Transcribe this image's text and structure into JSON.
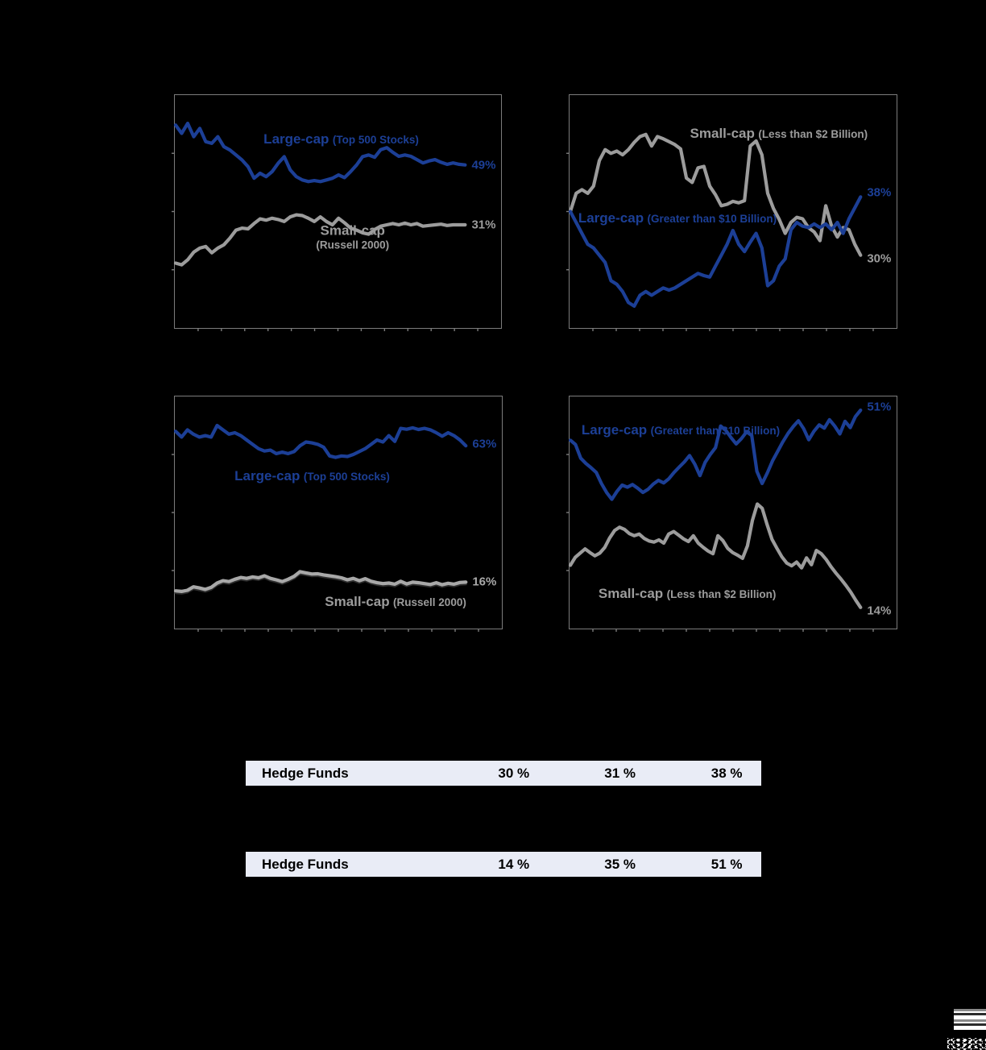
{
  "chart_data": [
    {
      "type": "line",
      "ylim": [
        0,
        70
      ],
      "legend_position": "inline-labels",
      "grid": false,
      "series": [
        {
          "name": "large-cap-top-500",
          "label": "Large-cap",
          "sublabel": "(Top 500 Stocks)",
          "color": "#1c3f96",
          "end_label": "49%",
          "end_dy": 0,
          "values": [
            61,
            58.5,
            61.5,
            57.5,
            60,
            56,
            55.5,
            57.5,
            54.5,
            53.5,
            52,
            50.5,
            48.5,
            45,
            46.5,
            45.5,
            47,
            49.5,
            51.5,
            47.5,
            45.5,
            44.5,
            44,
            44.3,
            44,
            44.5,
            45,
            46,
            45.2,
            47,
            49,
            51.5,
            52,
            51.3,
            53.6,
            54.2,
            52.8,
            51.6,
            52,
            51.6,
            50.6,
            49.6,
            50.2,
            50.6,
            49.8,
            49.2,
            49.6,
            49.2,
            49
          ]
        },
        {
          "name": "small-cap-russell-2000",
          "label": "Small-cap",
          "sublabel": "(Russell 2000)",
          "stacked_label": true,
          "color": "#9c9c9c",
          "end_label": "31%",
          "end_dy": 0,
          "values": [
            19.5,
            19,
            20.5,
            22.8,
            24,
            24.5,
            22.6,
            24,
            25,
            27,
            29.4,
            30,
            29.8,
            31.4,
            32.8,
            32.4,
            33,
            32.6,
            32,
            33.4,
            34,
            33.8,
            33,
            32,
            33.4,
            32,
            31,
            33,
            31.6,
            30,
            29.4,
            28.6,
            28.2,
            29.6,
            30.6,
            31,
            31.4,
            31,
            31.5,
            31,
            31.4,
            30.6,
            30.8,
            31,
            31.2,
            30.8,
            31,
            31,
            31
          ]
        }
      ]
    },
    {
      "type": "line",
      "ylim": [
        20,
        52
      ],
      "legend_position": "inline-labels",
      "grid": false,
      "series": [
        {
          "name": "large-cap-greater-10b",
          "label": "Large-cap",
          "sublabel": "(Greater than $10 Billion)",
          "color": "#1c3f96",
          "end_label": "38%",
          "end_dy": -5,
          "values": [
            36,
            34.5,
            33,
            31.5,
            31,
            30,
            29,
            26.5,
            26,
            25,
            23.5,
            23,
            24.5,
            25,
            24.5,
            25,
            25.5,
            25.2,
            25.5,
            26,
            26.5,
            27,
            27.5,
            27.2,
            27,
            28.5,
            30,
            31.5,
            33.4,
            31.5,
            30.5,
            31.8,
            33,
            31,
            25.8,
            26.5,
            28.5,
            29.5,
            33.5,
            34.5,
            34,
            33.8,
            34.3,
            33.8,
            34.3,
            33.5,
            34.5,
            33,
            35,
            36.5,
            38
          ]
        },
        {
          "name": "small-cap-less-2b",
          "label": "Small-cap",
          "sublabel": "(Less than $2 Billion)",
          "color": "#9c9c9c",
          "end_label": "30%",
          "end_dy": 4,
          "values": [
            36,
            38.5,
            39,
            38.5,
            39.5,
            43,
            44.5,
            44,
            44.3,
            43.8,
            44.5,
            45.5,
            46.3,
            46.6,
            45,
            46.3,
            46,
            45.6,
            45.2,
            44.6,
            40.6,
            40,
            42,
            42.2,
            39.5,
            38.3,
            36.8,
            37,
            37.4,
            37.2,
            37.5,
            45,
            45.7,
            43.8,
            38.5,
            36.4,
            34.9,
            33,
            34.5,
            35.2,
            35,
            33.8,
            33.2,
            32,
            36.8,
            34,
            32.5,
            33.8,
            33.5,
            31.5,
            30
          ]
        }
      ]
    },
    {
      "type": "line",
      "ylim": [
        0,
        80
      ],
      "legend_position": "inline-labels",
      "grid": false,
      "series": [
        {
          "name": "large-cap-top-500",
          "label": "Large-cap",
          "sublabel": "(Top 500 Stocks)",
          "color": "#1c3f96",
          "end_label": "63%",
          "end_dy": -2,
          "values": [
            68,
            66,
            68.5,
            67,
            66,
            66.5,
            66,
            70,
            68.5,
            67,
            67.5,
            66.5,
            65,
            63.5,
            62,
            61.2,
            61.5,
            60.3,
            60.8,
            60.3,
            61,
            63,
            64.3,
            64,
            63.5,
            62.5,
            59.5,
            59,
            59.5,
            59.3,
            60,
            61,
            62,
            63.5,
            65,
            64.3,
            66.5,
            64.5,
            69,
            68.7,
            69.2,
            68.6,
            69,
            68.5,
            67.5,
            66.3,
            67.5,
            66.5,
            65,
            63
          ]
        },
        {
          "name": "small-cap-russell-2000",
          "label": "Small-cap",
          "sublabel": "(Russell 2000)",
          "color": "#a8a8a8",
          "shadow": true,
          "end_label": "16%",
          "end_dy": 0,
          "values": [
            13,
            12.8,
            13.2,
            14.4,
            14,
            13.5,
            14.2,
            15.7,
            16.5,
            16.2,
            17,
            17.6,
            17.3,
            17.8,
            17.5,
            18.2,
            17.3,
            16.8,
            16.2,
            17,
            18,
            19.6,
            19.2,
            18.8,
            18.9,
            18.5,
            18.2,
            17.9,
            17.5,
            16.8,
            17.3,
            16.5,
            17.2,
            16.3,
            15.8,
            15.5,
            15.7,
            15.3,
            16.3,
            15.4,
            16,
            15.8,
            15.5,
            15.2,
            15.8,
            15.1,
            15.6,
            15.3,
            15.9,
            16
          ]
        }
      ]
    },
    {
      "type": "line",
      "ylim": [
        10,
        54
      ],
      "legend_position": "inline-labels",
      "grid": false,
      "series": [
        {
          "name": "large-cap-greater-10b",
          "label": "Large-cap",
          "sublabel": "(Greater than $10 Billion)",
          "color": "#1c3f96",
          "end_label": "51%",
          "end_dy": -4,
          "values": [
            45.7,
            44.9,
            42.3,
            41.3,
            40.5,
            39.6,
            37.5,
            35.8,
            34.5,
            36,
            37.2,
            36.8,
            37.3,
            36.6,
            35.8,
            36.4,
            37.4,
            38.1,
            37.6,
            38.4,
            39.6,
            40.6,
            41.6,
            42.8,
            41.2,
            39,
            41.5,
            43,
            44.3,
            48.4,
            47.6,
            46.2,
            45,
            46,
            47.3,
            46.6,
            39.8,
            37.5,
            39.5,
            41.8,
            43.6,
            45.4,
            47,
            48.3,
            49.4,
            47.9,
            45.8,
            47.4,
            48.6,
            48,
            49.6,
            48.4,
            46.9,
            49.3,
            48.1,
            50.2,
            51.4
          ]
        },
        {
          "name": "small-cap-less-2b",
          "label": "Small-cap",
          "sublabel": "(Less than $2 Billion)",
          "color": "#9c9c9c",
          "end_label": "14%",
          "end_dy": 4,
          "values": [
            22,
            23.5,
            24.3,
            25.1,
            24.4,
            23.8,
            24.3,
            25.4,
            27.2,
            28.6,
            29.2,
            28.8,
            28,
            27.6,
            27.9,
            27.1,
            26.6,
            26.4,
            26.8,
            26.2,
            27.9,
            28.4,
            27.7,
            27,
            26.5,
            27.6,
            26.2,
            25.4,
            24.7,
            24.2,
            27.6,
            26.7,
            25.2,
            24.4,
            23.9,
            23.3,
            25.7,
            30.5,
            33.6,
            32.8,
            29.7,
            26.9,
            25.2,
            23.6,
            22.4,
            21.9,
            22.6,
            21.5,
            23.4,
            22.1,
            24.8,
            24.2,
            23.1,
            21.7,
            20.5,
            19.4,
            18.2,
            16.9,
            15.4,
            14
          ]
        }
      ]
    }
  ],
  "table": {
    "row_background": "#e9ecf6",
    "rows": [
      {
        "label": "Hedge Funds",
        "values": [
          "30 %",
          "31 %",
          "38 %"
        ]
      },
      {
        "label": "Hedge Funds",
        "values": [
          "14 %",
          "35 %",
          "51 %"
        ]
      }
    ]
  },
  "colors": {
    "page_background": "#000000",
    "chart_border": "#7c7c7c",
    "large_cap_blue": "#1c3f96",
    "small_cap_gray": "#9c9c9c"
  }
}
